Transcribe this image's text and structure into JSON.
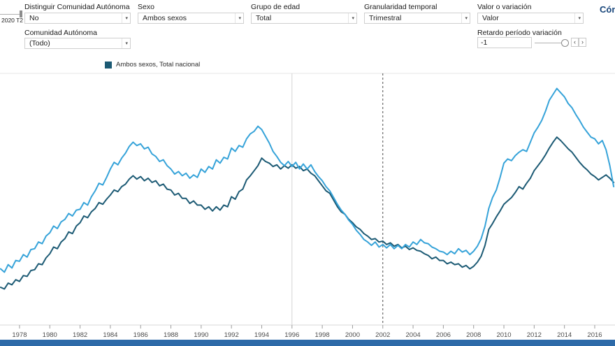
{
  "page": {
    "help_text": "Cóm"
  },
  "ui": {
    "chevron": "▾"
  },
  "filters": {
    "row1": [
      {
        "label": "Distinguir Comunidad Autónoma",
        "value": "No"
      },
      {
        "label": "Sexo",
        "value": "Ambos sexos"
      },
      {
        "label": "Grupo de edad",
        "value": "Total"
      },
      {
        "label": "Granularidad temporal",
        "value": "Trimestral"
      },
      {
        "label": "Valor o variación",
        "value": "Valor"
      }
    ],
    "comunidad": {
      "label": "Comunidad Autónoma",
      "value": "(Todo)"
    },
    "retardo": {
      "label": "Retardo período variación",
      "value": "-1",
      "prev_label": "‹",
      "next_label": "›"
    },
    "periodo": {
      "value": "2020 T2"
    }
  },
  "legend": {
    "items": [
      {
        "label": "Ambos sexos, Total nacional",
        "color": "#1c5a74"
      }
    ]
  },
  "footer": {
    "bar_color": "#2d6aa8"
  },
  "chart_data": {
    "type": "line",
    "title": "",
    "xlabel": "",
    "ylabel": "",
    "xlim": [
      1976.71,
      2017.34
    ],
    "ylim": [
      0,
      30
    ],
    "x_start": 1976.75,
    "x_step": 0.25,
    "x_ticks": [
      1978,
      1980,
      1982,
      1984,
      1986,
      1988,
      1990,
      1992,
      1994,
      1996,
      1998,
      2000,
      2002,
      2004,
      2006,
      2008,
      2010,
      2012,
      2014,
      2016
    ],
    "y_axis_visible": false,
    "grid": "none",
    "legend_position": "top-left",
    "reference_lines": [
      {
        "x": 1996,
        "style": "solid"
      },
      {
        "x": 2002,
        "style": "dashed"
      }
    ],
    "series": [
      {
        "name": "Ambos sexos, Total nacional (línea oscura)",
        "color": "#1c5a74",
        "values": [
          4.5,
          4.3,
          5.0,
          4.8,
          5.4,
          5.2,
          5.9,
          5.8,
          6.5,
          6.6,
          7.3,
          7.2,
          8.0,
          8.5,
          9.3,
          9.1,
          9.9,
          10.3,
          11.1,
          10.9,
          11.8,
          12.2,
          13.0,
          12.8,
          13.5,
          13.9,
          14.6,
          14.4,
          15.0,
          15.5,
          16.1,
          15.9,
          16.5,
          16.8,
          17.4,
          17.8,
          17.4,
          17.7,
          17.2,
          17.5,
          17.0,
          17.2,
          16.6,
          16.8,
          16.2,
          16.1,
          15.5,
          15.7,
          15.1,
          15.1,
          14.5,
          14.8,
          14.3,
          14.3,
          13.8,
          14.1,
          13.6,
          14.1,
          13.7,
          14.3,
          14.1,
          15.3,
          15.0,
          15.9,
          16.2,
          17.3,
          17.8,
          18.4,
          19.0,
          19.9,
          19.5,
          19.3,
          18.9,
          19.1,
          18.6,
          19.0,
          18.7,
          19.1,
          18.7,
          18.9,
          18.4,
          18.6,
          18.1,
          17.8,
          17.2,
          16.6,
          16.0,
          15.7,
          14.9,
          14.1,
          13.5,
          13.2,
          12.6,
          12.2,
          11.7,
          11.4,
          10.9,
          10.6,
          10.2,
          10.3,
          9.9,
          10.0,
          9.6,
          9.8,
          9.4,
          9.6,
          9.2,
          9.4,
          9.0,
          9.2,
          8.9,
          8.8,
          8.5,
          8.3,
          7.9,
          8.1,
          7.7,
          7.7,
          7.3,
          7.5,
          7.2,
          7.3,
          6.9,
          7.1,
          6.7,
          7.0,
          7.5,
          8.2,
          9.5,
          11.4,
          12.1,
          12.9,
          13.6,
          14.4,
          14.8,
          15.2,
          15.8,
          16.5,
          16.2,
          16.9,
          17.5,
          18.4,
          19.0,
          19.6,
          20.3,
          21.1,
          21.8,
          22.4,
          22.0,
          21.5,
          21.0,
          20.6,
          20.0,
          19.4,
          18.9,
          18.5,
          18.0,
          17.7,
          17.3,
          17.6,
          17.9,
          17.5,
          17.0
        ]
      },
      {
        "name": "Ambos sexos, Total nacional (línea clara)",
        "color": "#36a3d9",
        "values": [
          6.7,
          6.3,
          7.2,
          6.8,
          7.7,
          7.6,
          8.4,
          8.1,
          9.0,
          9.1,
          9.9,
          9.7,
          10.6,
          11.0,
          11.8,
          11.5,
          12.3,
          12.6,
          13.3,
          13.0,
          13.7,
          13.8,
          14.6,
          14.3,
          15.3,
          16.0,
          16.9,
          16.7,
          17.6,
          18.6,
          19.4,
          19.1,
          19.9,
          20.5,
          21.3,
          21.8,
          21.4,
          21.6,
          21.0,
          21.2,
          20.4,
          20.1,
          19.5,
          19.7,
          19.0,
          18.6,
          18.0,
          18.3,
          17.8,
          18.1,
          17.5,
          17.9,
          17.6,
          18.6,
          18.2,
          18.9,
          18.6,
          19.7,
          19.3,
          20.0,
          19.8,
          21.1,
          20.7,
          21.4,
          21.2,
          22.2,
          22.8,
          23.1,
          23.7,
          23.3,
          22.5,
          21.7,
          20.7,
          20.1,
          19.4,
          19.0,
          19.5,
          18.9,
          19.4,
          18.6,
          19.2,
          18.6,
          19.1,
          18.3,
          17.7,
          17.2,
          16.5,
          16.0,
          15.2,
          14.4,
          13.7,
          13.2,
          12.5,
          12.0,
          11.3,
          10.8,
          10.2,
          9.9,
          9.5,
          9.9,
          9.3,
          9.6,
          9.2,
          9.6,
          9.1,
          9.5,
          9.1,
          9.6,
          9.3,
          9.9,
          9.6,
          10.2,
          9.8,
          9.7,
          9.3,
          9.1,
          8.8,
          8.7,
          8.4,
          8.8,
          8.5,
          9.1,
          8.7,
          8.9,
          8.4,
          8.8,
          9.4,
          10.3,
          11.8,
          13.9,
          15.2,
          16.1,
          17.6,
          19.3,
          19.8,
          19.6,
          20.2,
          20.6,
          20.9,
          20.7,
          21.8,
          22.9,
          23.6,
          24.4,
          25.5,
          26.8,
          27.5,
          28.2,
          27.7,
          27.2,
          26.4,
          25.9,
          25.1,
          24.4,
          23.6,
          23.0,
          22.4,
          22.2,
          21.6,
          22.0,
          20.9,
          19.0,
          16.5
        ]
      }
    ]
  }
}
